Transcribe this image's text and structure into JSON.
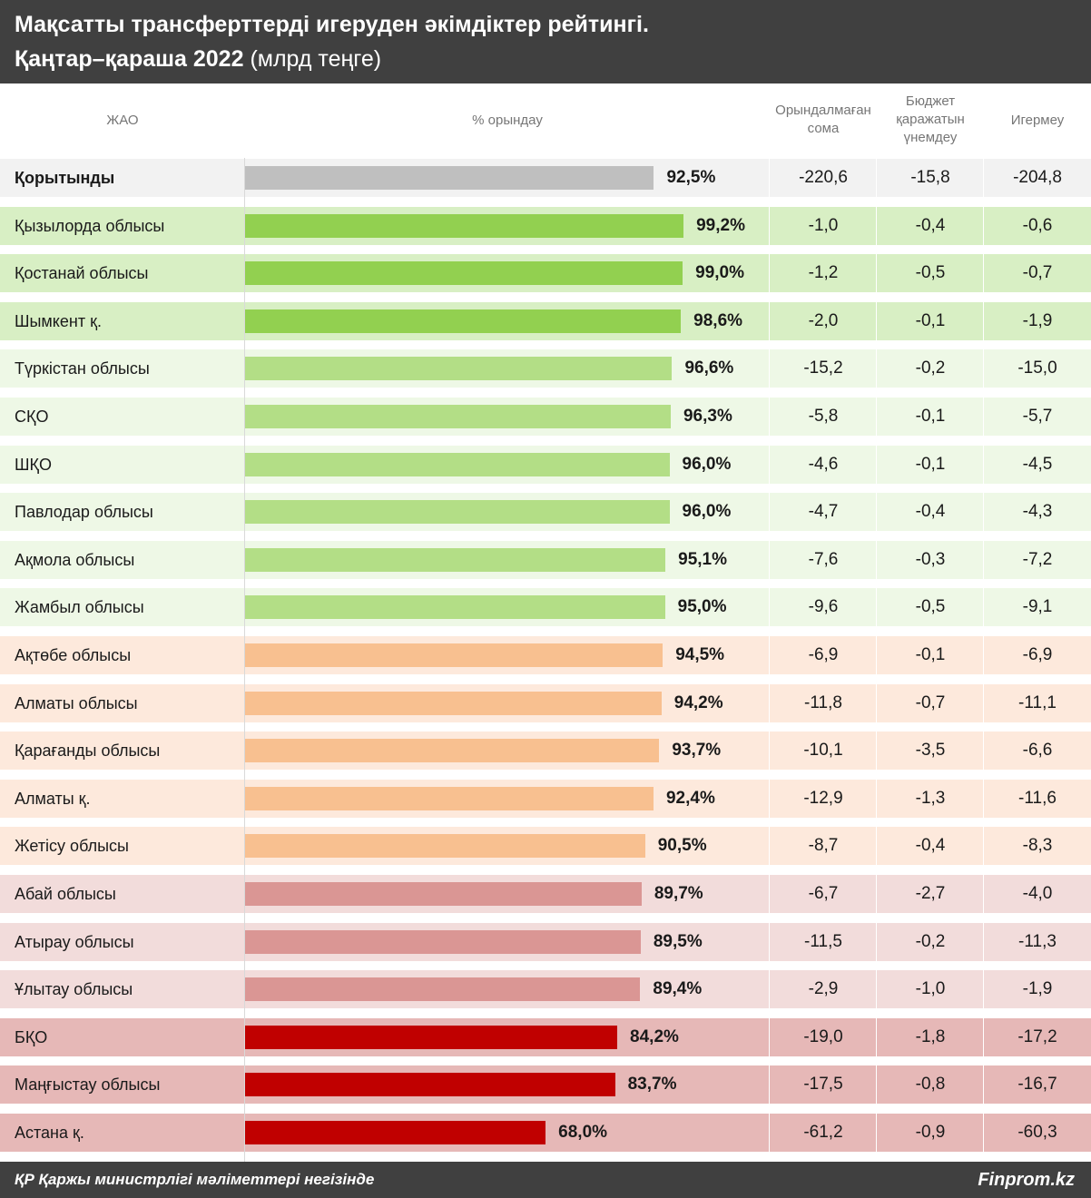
{
  "title": {
    "line1": "Мақсатты трансферттерді игеруден әкімдіктер рейтингі.",
    "line2_main": "Қаңтар–қараша 2022",
    "line2_unit": "(млрд теңге)"
  },
  "columns": {
    "region": "ЖАО",
    "percent": "% орындау",
    "unfulfilled": "Орындалмаған сома",
    "savings": "Бюджет қаражатын үнемдеу",
    "unused": "Игермеу"
  },
  "colors": {
    "total": "#bfbfbf",
    "top_bar": "#92d050",
    "top_row": "#d8efc4",
    "good_bar": "#b3de86",
    "good_row": "#eef8e6",
    "mid_bar": "#f8c090",
    "mid_row": "#fde9dc",
    "low_bar": "#da9694",
    "low_row": "#f2dcdb",
    "bad_bar": "#c00000",
    "bad_row": "#e6b8b7",
    "total_row": "#f2f2f2"
  },
  "chart_data": {
    "type": "bar",
    "orientation": "horizontal",
    "unit": "млрд теңге",
    "xlim": [
      0,
      100
    ],
    "rows": [
      {
        "name": "Қорытынды",
        "percent": 92.5,
        "percent_label": "92,5%",
        "unfulfilled": "-220,6",
        "savings": "-15,8",
        "unused": "-204,8",
        "group": "total"
      },
      {
        "name": "Қызылорда облысы",
        "percent": 99.2,
        "percent_label": "99,2%",
        "unfulfilled": "-1,0",
        "savings": "-0,4",
        "unused": "-0,6",
        "group": "top"
      },
      {
        "name": "Қостанай облысы",
        "percent": 99.0,
        "percent_label": "99,0%",
        "unfulfilled": "-1,2",
        "savings": "-0,5",
        "unused": "-0,7",
        "group": "top"
      },
      {
        "name": "Шымкент қ.",
        "percent": 98.6,
        "percent_label": "98,6%",
        "unfulfilled": "-2,0",
        "savings": "-0,1",
        "unused": "-1,9",
        "group": "top"
      },
      {
        "name": "Түркістан облысы",
        "percent": 96.6,
        "percent_label": "96,6%",
        "unfulfilled": "-15,2",
        "savings": "-0,2",
        "unused": "-15,0",
        "group": "good"
      },
      {
        "name": "СҚО",
        "percent": 96.3,
        "percent_label": "96,3%",
        "unfulfilled": "-5,8",
        "savings": "-0,1",
        "unused": "-5,7",
        "group": "good"
      },
      {
        "name": "ШҚО",
        "percent": 96.0,
        "percent_label": "96,0%",
        "unfulfilled": "-4,6",
        "savings": "-0,1",
        "unused": "-4,5",
        "group": "good"
      },
      {
        "name": "Павлодар облысы",
        "percent": 96.0,
        "percent_label": "96,0%",
        "unfulfilled": "-4,7",
        "savings": "-0,4",
        "unused": "-4,3",
        "group": "good"
      },
      {
        "name": "Ақмола облысы",
        "percent": 95.1,
        "percent_label": "95,1%",
        "unfulfilled": "-7,6",
        "savings": "-0,3",
        "unused": "-7,2",
        "group": "good"
      },
      {
        "name": "Жамбыл облысы",
        "percent": 95.0,
        "percent_label": "95,0%",
        "unfulfilled": "-9,6",
        "savings": "-0,5",
        "unused": "-9,1",
        "group": "good"
      },
      {
        "name": "Ақтөбе облысы",
        "percent": 94.5,
        "percent_label": "94,5%",
        "unfulfilled": "-6,9",
        "savings": "-0,1",
        "unused": "-6,9",
        "group": "mid"
      },
      {
        "name": "Алматы облысы",
        "percent": 94.2,
        "percent_label": "94,2%",
        "unfulfilled": "-11,8",
        "savings": "-0,7",
        "unused": "-11,1",
        "group": "mid"
      },
      {
        "name": "Қарағанды облысы",
        "percent": 93.7,
        "percent_label": "93,7%",
        "unfulfilled": "-10,1",
        "savings": "-3,5",
        "unused": "-6,6",
        "group": "mid"
      },
      {
        "name": "Алматы қ.",
        "percent": 92.4,
        "percent_label": "92,4%",
        "unfulfilled": "-12,9",
        "savings": "-1,3",
        "unused": "-11,6",
        "group": "mid"
      },
      {
        "name": "Жетісу облысы",
        "percent": 90.5,
        "percent_label": "90,5%",
        "unfulfilled": "-8,7",
        "savings": "-0,4",
        "unused": "-8,3",
        "group": "mid"
      },
      {
        "name": "Абай облысы",
        "percent": 89.7,
        "percent_label": "89,7%",
        "unfulfilled": "-6,7",
        "savings": "-2,7",
        "unused": "-4,0",
        "group": "low"
      },
      {
        "name": "Атырау облысы",
        "percent": 89.5,
        "percent_label": "89,5%",
        "unfulfilled": "-11,5",
        "savings": "-0,2",
        "unused": "-11,3",
        "group": "low"
      },
      {
        "name": "Ұлытау облысы",
        "percent": 89.4,
        "percent_label": "89,4%",
        "unfulfilled": "-2,9",
        "savings": "-1,0",
        "unused": "-1,9",
        "group": "low"
      },
      {
        "name": "БҚО",
        "percent": 84.2,
        "percent_label": "84,2%",
        "unfulfilled": "-19,0",
        "savings": "-1,8",
        "unused": "-17,2",
        "group": "bad"
      },
      {
        "name": "Маңғыстау облысы",
        "percent": 83.7,
        "percent_label": "83,7%",
        "unfulfilled": "-17,5",
        "savings": "-0,8",
        "unused": "-16,7",
        "group": "bad"
      },
      {
        "name": "Астана қ.",
        "percent": 68.0,
        "percent_label": "68,0%",
        "unfulfilled": "-61,2",
        "savings": "-0,9",
        "unused": "-60,3",
        "group": "bad"
      }
    ]
  },
  "footer": {
    "source": "ҚР Қаржы министрлігі мәліметтері негізінде",
    "brand": "Finprom.kz"
  }
}
